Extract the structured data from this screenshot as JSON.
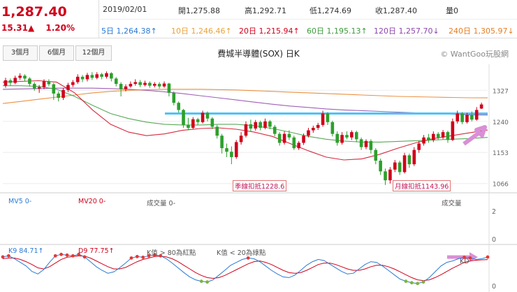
{
  "quote": {
    "price": "1,287.40",
    "change": "15.31▲",
    "change_pct": "1.20%"
  },
  "ohlc": {
    "date": "2019/02/01",
    "open": "開1,275.88",
    "high": "高1,292.71",
    "low": "低1,274.69",
    "close": "收1,287.40",
    "volume": "量0"
  },
  "ma_values": [
    {
      "label": "5日 1,264.38↑",
      "color": "#2a7ad5"
    },
    {
      "label": "10日 1,246.46↑",
      "color": "#e8a33d"
    },
    {
      "label": "20日 1,215.94↑",
      "color": "#d0021b"
    },
    {
      "label": "60日 1,195.13↑",
      "color": "#3c9a3c"
    },
    {
      "label": "120日 1,257.70↓",
      "color": "#8e44ad"
    },
    {
      "label": "240日 1,305.97↓",
      "color": "#e67e22"
    }
  ],
  "tabs": [
    "3個月",
    "6個月",
    "12個月"
  ],
  "chart_title": "費城半導體(SOX) 日K",
  "brand": "© WantGoo玩股網",
  "price_axis": [
    "1327",
    "1240",
    "1153",
    "1066"
  ],
  "price_range": [
    1040,
    1400
  ],
  "annotations": {
    "season_deduct": "季線扣抵1228.6",
    "month_deduct": "月線扣抵1143.96",
    "resistance": 1262
  },
  "volume_panel": {
    "mv5": "MV5 0-",
    "mv20": "MV20 0-",
    "vol_label": "成交量 0-",
    "vol_right": "成交量",
    "axis": [
      "2",
      "0"
    ]
  },
  "kd_panel": {
    "k": "K9 84.71↑",
    "d": "D9 77.75↑",
    "note1": "K值 > 80為紅點",
    "note2": "K值 < 20為綠點",
    "kd_label": "KD",
    "axis": [
      "0"
    ]
  },
  "colors": {
    "up": "#d0021b",
    "down": "#2ca02c",
    "resistance": "#4fc3f7",
    "arrow": "#d98fd6"
  },
  "chart_data": {
    "type": "line",
    "title": "費城半導體(SOX) 日K",
    "y_ticks": [
      1327,
      1240,
      1153,
      1066
    ],
    "candles": [
      {
        "o": 1340,
        "c": 1355,
        "h": 1362,
        "l": 1334
      },
      {
        "o": 1355,
        "c": 1348,
        "h": 1360,
        "l": 1340
      },
      {
        "o": 1348,
        "c": 1362,
        "h": 1368,
        "l": 1344
      },
      {
        "o": 1362,
        "c": 1368,
        "h": 1375,
        "l": 1356
      },
      {
        "o": 1368,
        "c": 1360,
        "h": 1372,
        "l": 1352
      },
      {
        "o": 1360,
        "c": 1345,
        "h": 1364,
        "l": 1338
      },
      {
        "o": 1345,
        "c": 1332,
        "h": 1350,
        "l": 1326
      },
      {
        "o": 1332,
        "c": 1336,
        "h": 1342,
        "l": 1320
      },
      {
        "o": 1336,
        "c": 1352,
        "h": 1358,
        "l": 1330
      },
      {
        "o": 1352,
        "c": 1344,
        "h": 1358,
        "l": 1338
      },
      {
        "o": 1344,
        "c": 1318,
        "h": 1348,
        "l": 1300
      },
      {
        "o": 1318,
        "c": 1306,
        "h": 1324,
        "l": 1296
      },
      {
        "o": 1306,
        "c": 1328,
        "h": 1334,
        "l": 1300
      },
      {
        "o": 1328,
        "c": 1342,
        "h": 1348,
        "l": 1322
      },
      {
        "o": 1342,
        "c": 1350,
        "h": 1356,
        "l": 1336
      },
      {
        "o": 1350,
        "c": 1365,
        "h": 1372,
        "l": 1345
      },
      {
        "o": 1365,
        "c": 1358,
        "h": 1370,
        "l": 1350
      },
      {
        "o": 1358,
        "c": 1370,
        "h": 1376,
        "l": 1352
      },
      {
        "o": 1370,
        "c": 1362,
        "h": 1378,
        "l": 1356
      },
      {
        "o": 1362,
        "c": 1372,
        "h": 1378,
        "l": 1358
      },
      {
        "o": 1372,
        "c": 1365,
        "h": 1376,
        "l": 1358
      },
      {
        "o": 1365,
        "c": 1375,
        "h": 1380,
        "l": 1360
      },
      {
        "o": 1375,
        "c": 1360,
        "h": 1378,
        "l": 1352
      },
      {
        "o": 1360,
        "c": 1345,
        "h": 1364,
        "l": 1338
      },
      {
        "o": 1345,
        "c": 1330,
        "h": 1350,
        "l": 1310
      },
      {
        "o": 1330,
        "c": 1338,
        "h": 1344,
        "l": 1324
      },
      {
        "o": 1338,
        "c": 1345,
        "h": 1352,
        "l": 1334
      },
      {
        "o": 1345,
        "c": 1350,
        "h": 1358,
        "l": 1340
      },
      {
        "o": 1350,
        "c": 1342,
        "h": 1356,
        "l": 1336
      },
      {
        "o": 1342,
        "c": 1348,
        "h": 1354,
        "l": 1338
      },
      {
        "o": 1348,
        "c": 1340,
        "h": 1352,
        "l": 1334
      },
      {
        "o": 1340,
        "c": 1345,
        "h": 1350,
        "l": 1335
      },
      {
        "o": 1345,
        "c": 1338,
        "h": 1350,
        "l": 1332
      },
      {
        "o": 1338,
        "c": 1346,
        "h": 1352,
        "l": 1334
      },
      {
        "o": 1346,
        "c": 1320,
        "h": 1348,
        "l": 1310
      },
      {
        "o": 1320,
        "c": 1292,
        "h": 1324,
        "l": 1285
      },
      {
        "o": 1292,
        "c": 1272,
        "h": 1296,
        "l": 1265
      },
      {
        "o": 1272,
        "c": 1230,
        "h": 1275,
        "l": 1222
      },
      {
        "o": 1230,
        "c": 1222,
        "h": 1250,
        "l": 1215
      },
      {
        "o": 1222,
        "c": 1246,
        "h": 1252,
        "l": 1218
      },
      {
        "o": 1246,
        "c": 1238,
        "h": 1250,
        "l": 1230
      },
      {
        "o": 1238,
        "c": 1264,
        "h": 1270,
        "l": 1234
      },
      {
        "o": 1264,
        "c": 1248,
        "h": 1268,
        "l": 1240
      },
      {
        "o": 1248,
        "c": 1225,
        "h": 1252,
        "l": 1218
      },
      {
        "o": 1225,
        "c": 1200,
        "h": 1230,
        "l": 1192
      },
      {
        "o": 1200,
        "c": 1165,
        "h": 1205,
        "l": 1150
      },
      {
        "o": 1165,
        "c": 1155,
        "h": 1178,
        "l": 1140
      },
      {
        "o": 1155,
        "c": 1140,
        "h": 1170,
        "l": 1120
      },
      {
        "o": 1140,
        "c": 1182,
        "h": 1188,
        "l": 1135
      },
      {
        "o": 1182,
        "c": 1200,
        "h": 1210,
        "l": 1175
      },
      {
        "o": 1200,
        "c": 1232,
        "h": 1240,
        "l": 1195
      },
      {
        "o": 1232,
        "c": 1220,
        "h": 1245,
        "l": 1212
      },
      {
        "o": 1220,
        "c": 1238,
        "h": 1244,
        "l": 1214
      },
      {
        "o": 1238,
        "c": 1222,
        "h": 1242,
        "l": 1215
      },
      {
        "o": 1222,
        "c": 1240,
        "h": 1248,
        "l": 1218
      },
      {
        "o": 1240,
        "c": 1225,
        "h": 1244,
        "l": 1218
      },
      {
        "o": 1225,
        "c": 1205,
        "h": 1230,
        "l": 1198
      },
      {
        "o": 1205,
        "c": 1180,
        "h": 1210,
        "l": 1172
      },
      {
        "o": 1180,
        "c": 1205,
        "h": 1212,
        "l": 1175
      },
      {
        "o": 1205,
        "c": 1195,
        "h": 1215,
        "l": 1188
      },
      {
        "o": 1195,
        "c": 1165,
        "h": 1200,
        "l": 1160
      },
      {
        "o": 1165,
        "c": 1180,
        "h": 1185,
        "l": 1160
      },
      {
        "o": 1180,
        "c": 1200,
        "h": 1206,
        "l": 1174
      },
      {
        "o": 1200,
        "c": 1215,
        "h": 1222,
        "l": 1195
      },
      {
        "o": 1215,
        "c": 1222,
        "h": 1228,
        "l": 1208
      },
      {
        "o": 1222,
        "c": 1230,
        "h": 1236,
        "l": 1216
      },
      {
        "o": 1230,
        "c": 1262,
        "h": 1270,
        "l": 1225
      },
      {
        "o": 1262,
        "c": 1238,
        "h": 1266,
        "l": 1230
      },
      {
        "o": 1238,
        "c": 1205,
        "h": 1242,
        "l": 1198
      },
      {
        "o": 1205,
        "c": 1180,
        "h": 1212,
        "l": 1172
      },
      {
        "o": 1180,
        "c": 1202,
        "h": 1210,
        "l": 1175
      },
      {
        "o": 1202,
        "c": 1195,
        "h": 1212,
        "l": 1190
      },
      {
        "o": 1195,
        "c": 1210,
        "h": 1215,
        "l": 1188
      },
      {
        "o": 1210,
        "c": 1190,
        "h": 1214,
        "l": 1182
      },
      {
        "o": 1190,
        "c": 1168,
        "h": 1195,
        "l": 1160
      },
      {
        "o": 1168,
        "c": 1185,
        "h": 1190,
        "l": 1162
      },
      {
        "o": 1185,
        "c": 1160,
        "h": 1190,
        "l": 1150
      },
      {
        "o": 1160,
        "c": 1130,
        "h": 1165,
        "l": 1120
      },
      {
        "o": 1130,
        "c": 1100,
        "h": 1136,
        "l": 1090
      },
      {
        "o": 1100,
        "c": 1075,
        "h": 1108,
        "l": 1062
      },
      {
        "o": 1075,
        "c": 1105,
        "h": 1112,
        "l": 1066
      },
      {
        "o": 1105,
        "c": 1125,
        "h": 1132,
        "l": 1098
      },
      {
        "o": 1125,
        "c": 1098,
        "h": 1130,
        "l": 1090
      },
      {
        "o": 1098,
        "c": 1145,
        "h": 1152,
        "l": 1094
      },
      {
        "o": 1145,
        "c": 1120,
        "h": 1150,
        "l": 1110
      },
      {
        "o": 1120,
        "c": 1160,
        "h": 1168,
        "l": 1115
      },
      {
        "o": 1160,
        "c": 1178,
        "h": 1185,
        "l": 1152
      },
      {
        "o": 1178,
        "c": 1195,
        "h": 1202,
        "l": 1172
      },
      {
        "o": 1195,
        "c": 1188,
        "h": 1205,
        "l": 1180
      },
      {
        "o": 1188,
        "c": 1205,
        "h": 1212,
        "l": 1182
      },
      {
        "o": 1205,
        "c": 1195,
        "h": 1210,
        "l": 1188
      },
      {
        "o": 1195,
        "c": 1210,
        "h": 1216,
        "l": 1190
      },
      {
        "o": 1210,
        "c": 1188,
        "h": 1214,
        "l": 1180
      },
      {
        "o": 1188,
        "c": 1240,
        "h": 1248,
        "l": 1185
      },
      {
        "o": 1240,
        "c": 1262,
        "h": 1270,
        "l": 1234
      },
      {
        "o": 1262,
        "c": 1238,
        "h": 1266,
        "l": 1232
      },
      {
        "o": 1238,
        "c": 1258,
        "h": 1264,
        "l": 1234
      },
      {
        "o": 1258,
        "c": 1245,
        "h": 1268,
        "l": 1240
      },
      {
        "o": 1245,
        "c": 1272,
        "h": 1280,
        "l": 1242
      },
      {
        "o": 1275.88,
        "c": 1287.4,
        "h": 1292.71,
        "l": 1274.69
      }
    ],
    "ma_series": [
      {
        "name": "120日",
        "color": "#8e44ad",
        "values": [
          1330,
          1331,
          1332,
          1333,
          1333,
          1333,
          1332,
          1330,
          1327,
          1323,
          1318,
          1312,
          1306,
          1300,
          1294,
          1288,
          1283,
          1279,
          1275,
          1272,
          1270,
          1268,
          1266,
          1264,
          1262,
          1260,
          1258,
          1257.7
        ]
      },
      {
        "name": "240日",
        "color": "#e67e22",
        "values": [
          1290,
          1296,
          1302,
          1308,
          1314,
          1320,
          1324,
          1327,
          1329,
          1330,
          1330,
          1330,
          1329,
          1328,
          1326,
          1324,
          1322,
          1320,
          1318,
          1316,
          1314,
          1312,
          1310,
          1309,
          1308,
          1307,
          1306,
          1305.97
        ]
      },
      {
        "name": "60日",
        "color": "#3c9a3c",
        "values": [
          1340,
          1340,
          1338,
          1330,
          1310,
          1285,
          1262,
          1248,
          1238,
          1232,
          1230,
          1230,
          1232,
          1232,
          1228,
          1220,
          1210,
          1198,
          1190,
          1185,
          1182,
          1182,
          1184,
          1186,
          1188,
          1190,
          1192,
          1195.13
        ]
      },
      {
        "name": "20日",
        "color": "#d0021b",
        "values": [
          1350,
          1352,
          1354,
          1350,
          1320,
          1272,
          1232,
          1210,
          1200,
          1205,
          1215,
          1220,
          1222,
          1218,
          1210,
          1198,
          1178,
          1158,
          1140,
          1132,
          1135,
          1148,
          1165,
          1180,
          1192,
          1200,
          1208,
          1215.94
        ]
      }
    ],
    "kd": {
      "k": [
        85,
        88,
        80,
        70,
        60,
        45,
        38,
        50,
        70,
        88,
        92,
        90,
        88,
        92,
        85,
        72,
        58,
        48,
        40,
        44,
        55,
        68,
        82,
        86,
        84,
        88,
        90,
        88,
        80,
        68,
        55,
        42,
        30,
        22,
        18,
        16,
        22,
        35,
        48,
        62,
        70,
        78,
        82,
        80,
        72,
        60,
        48,
        38,
        30,
        28,
        35,
        48,
        62,
        72,
        78,
        75,
        65,
        55,
        45,
        38,
        40,
        52,
        64,
        72,
        70,
        60,
        48,
        36,
        24,
        18,
        14,
        12,
        16,
        28,
        44,
        60,
        70,
        74,
        80,
        84,
        82,
        78,
        80,
        84.71
      ],
      "d": [
        80,
        82,
        82,
        78,
        72,
        64,
        55,
        52,
        58,
        68,
        78,
        84,
        86,
        88,
        87,
        82,
        74,
        66,
        58,
        52,
        52,
        56,
        64,
        72,
        78,
        82,
        86,
        87,
        85,
        80,
        72,
        62,
        52,
        42,
        34,
        28,
        26,
        28,
        34,
        42,
        50,
        58,
        66,
        72,
        74,
        70,
        64,
        56,
        48,
        42,
        40,
        42,
        48,
        56,
        64,
        68,
        68,
        64,
        58,
        52,
        48,
        48,
        52,
        58,
        62,
        62,
        58,
        52,
        44,
        36,
        28,
        22,
        20,
        22,
        28,
        36,
        45,
        54,
        62,
        70,
        74,
        76,
        77,
        77.75
      ]
    }
  }
}
